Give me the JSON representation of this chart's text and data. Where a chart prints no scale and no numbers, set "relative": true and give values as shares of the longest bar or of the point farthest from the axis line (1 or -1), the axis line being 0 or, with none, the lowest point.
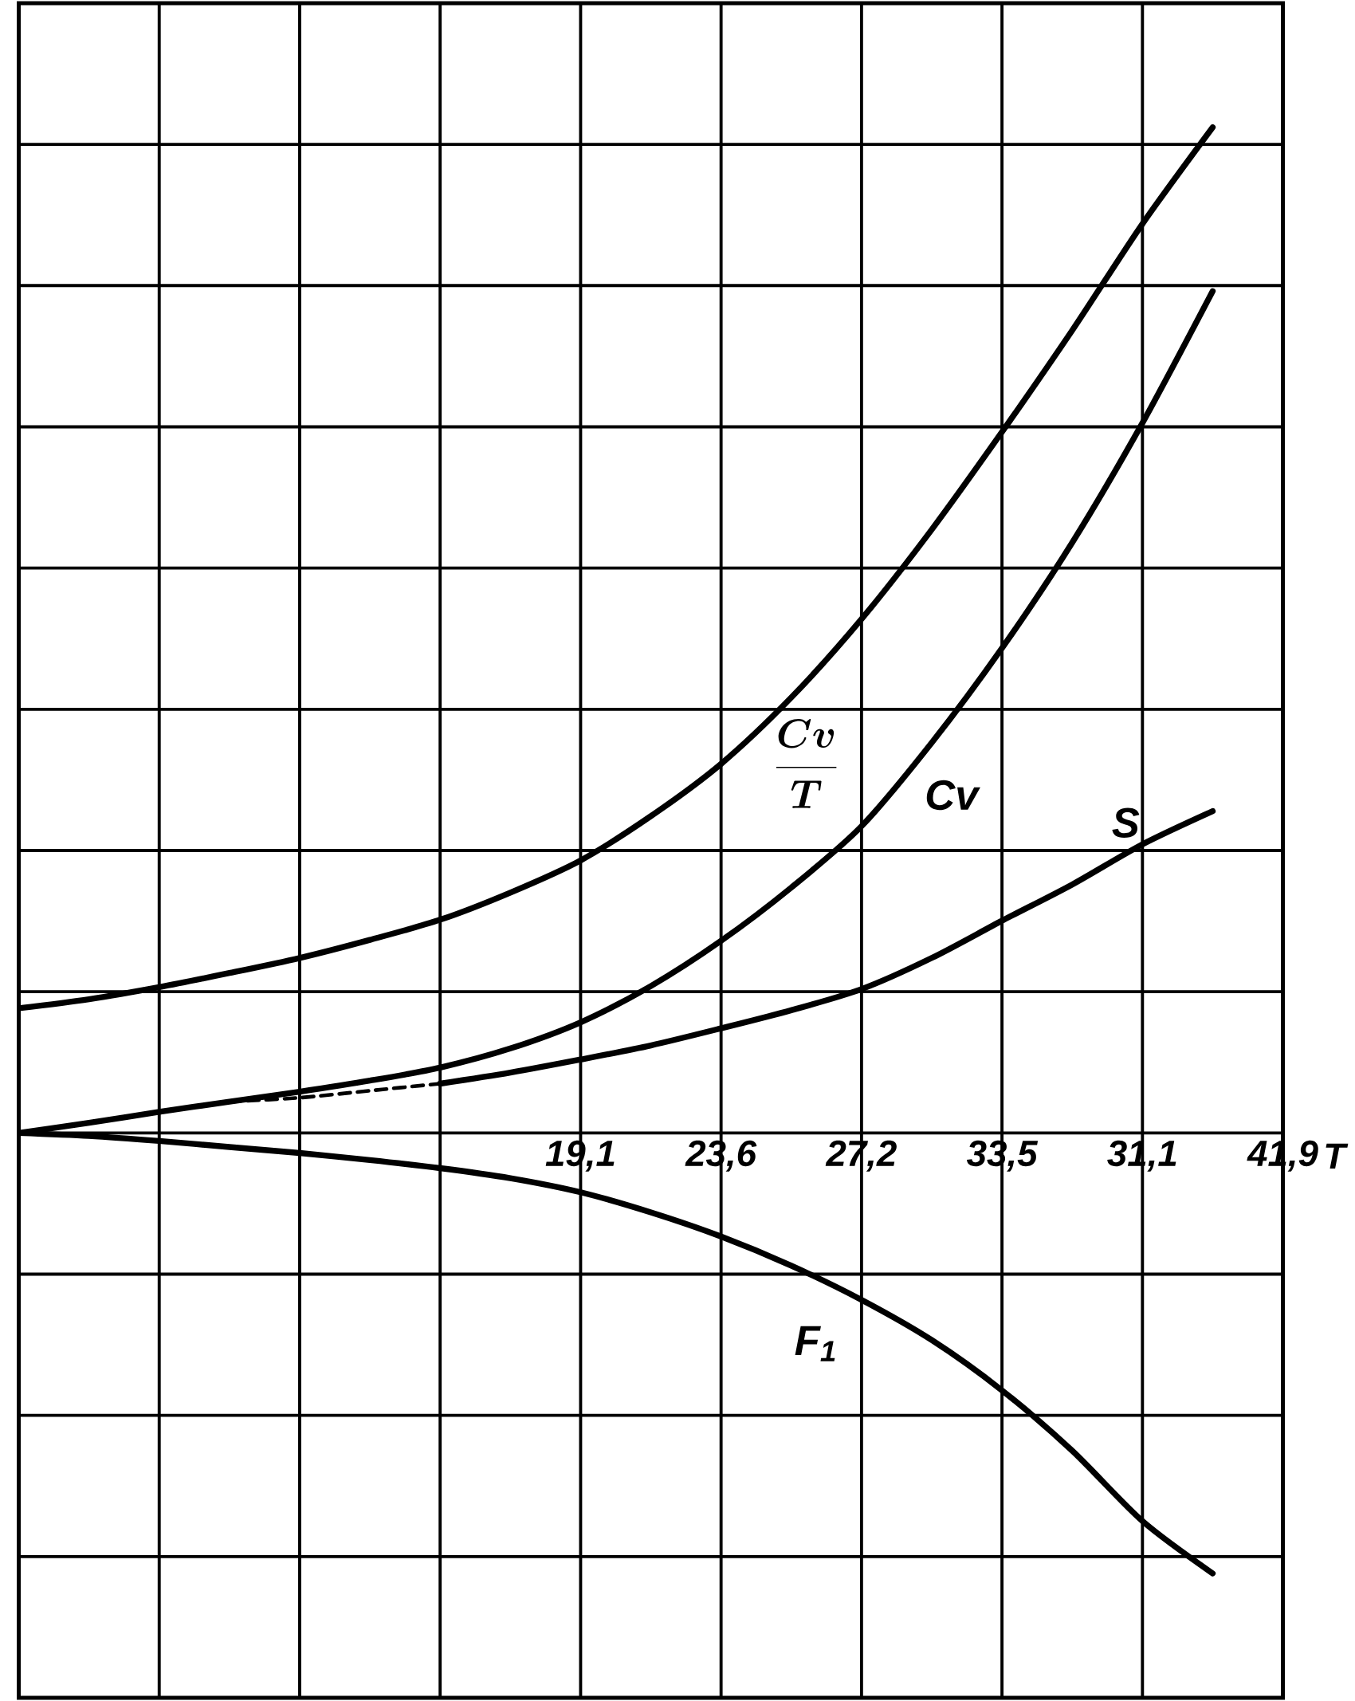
{
  "chart_data": {
    "type": "line",
    "relative": true,
    "xlabel": "T",
    "grid": true,
    "categories": [
      null,
      null,
      null,
      null,
      null,
      null,
      null,
      null,
      "19,1",
      null,
      "23,6",
      null,
      "27,2",
      null,
      "33,5",
      null,
      "31,1",
      null,
      "41,9"
    ],
    "series": [
      {
        "name": "\\frac{Cv}{T}",
        "color": "#000000",
        "line_style": "solid",
        "values": [
          0.124,
          0.133,
          0.145,
          0.159,
          0.174,
          0.192,
          0.212,
          0.239,
          0.271,
          0.315,
          0.367,
          0.433,
          0.511,
          0.6,
          0.697,
          0.798,
          0.904,
          1.0,
          null
        ]
      },
      {
        "name": "Cv",
        "color": "#000000",
        "line_style": "solid",
        "values": [
          0,
          0.01,
          0.021,
          0.031,
          0.041,
          0.052,
          0.065,
          0.084,
          0.11,
          0.146,
          0.191,
          0.244,
          0.305,
          0.388,
          0.482,
          0.587,
          0.706,
          0.837,
          null
        ]
      },
      {
        "name": "S",
        "color": "#000000",
        "line_style": "solid",
        "values": [
          null,
          null,
          null,
          null,
          null,
          null,
          0.049,
          0.06,
          0.073,
          0.087,
          0.104,
          0.122,
          0.143,
          0.174,
          0.211,
          0.247,
          0.287,
          0.32,
          null
        ]
      },
      {
        "color": "#000000",
        "line_style": "dashed",
        "values": [
          null,
          null,
          null,
          0.031,
          0.035,
          0.042,
          0.049,
          null,
          null,
          null,
          null,
          null,
          null,
          null,
          null,
          null,
          null,
          null,
          null
        ]
      },
      {
        "name": "F$_{1}$",
        "color": "#000000",
        "line_style": "solid",
        "values": [
          0,
          -0.003,
          -0.008,
          -0.014,
          -0.02,
          -0.027,
          -0.035,
          -0.045,
          -0.059,
          -0.079,
          -0.103,
          -0.132,
          -0.166,
          -0.206,
          -0.256,
          -0.316,
          -0.386,
          -0.438,
          null
        ]
      }
    ]
  }
}
